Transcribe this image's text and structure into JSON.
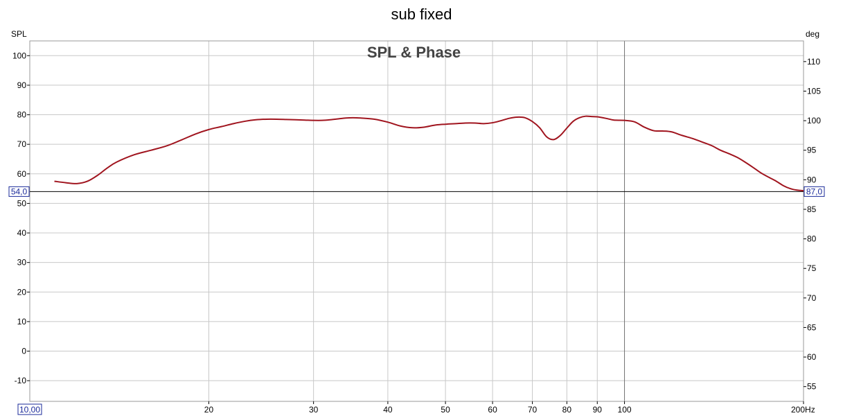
{
  "chart_data": {
    "type": "line",
    "title": "sub fixed",
    "subtitle": "SPL & Phase",
    "xlabel": "Hz",
    "ylabel": "SPL",
    "y2label": "deg",
    "x_scale": "log",
    "xlim": [
      10,
      200
    ],
    "ylim": [
      -17,
      105
    ],
    "y2lim": [
      52.5,
      113.5
    ],
    "x_ticks": [
      {
        "value": 20,
        "label": "20"
      },
      {
        "value": 30,
        "label": "30"
      },
      {
        "value": 40,
        "label": "40"
      },
      {
        "value": 50,
        "label": "50"
      },
      {
        "value": 60,
        "label": "60"
      },
      {
        "value": 70,
        "label": "70"
      },
      {
        "value": 80,
        "label": "80"
      },
      {
        "value": 90,
        "label": "90"
      },
      {
        "value": 100,
        "label": "100"
      },
      {
        "value": 200,
        "label": "200Hz"
      }
    ],
    "x_minor_grid": [
      70,
      80,
      90
    ],
    "x_start_label": "10,00",
    "y_ticks": [
      {
        "value": 100,
        "label": "100"
      },
      {
        "value": 90,
        "label": "90"
      },
      {
        "value": 80,
        "label": "80"
      },
      {
        "value": 70,
        "label": "70"
      },
      {
        "value": 60,
        "label": "60"
      },
      {
        "value": 50,
        "label": "50"
      },
      {
        "value": 40,
        "label": "40"
      },
      {
        "value": 30,
        "label": "30"
      },
      {
        "value": 20,
        "label": "20"
      },
      {
        "value": 10,
        "label": "10"
      },
      {
        "value": 0,
        "label": "0"
      },
      {
        "value": -10,
        "label": "-10"
      }
    ],
    "y2_ticks": [
      {
        "value": 110,
        "label": "110"
      },
      {
        "value": 105,
        "label": "105"
      },
      {
        "value": 100,
        "label": "100"
      },
      {
        "value": 95,
        "label": "95"
      },
      {
        "value": 90,
        "label": "90"
      },
      {
        "value": 85,
        "label": "85"
      },
      {
        "value": 80,
        "label": "80"
      },
      {
        "value": 75,
        "label": "75"
      },
      {
        "value": 70,
        "label": "70"
      },
      {
        "value": 65,
        "label": "65"
      },
      {
        "value": 60,
        "label": "60"
      },
      {
        "value": 55,
        "label": "55"
      }
    ],
    "reference_line": {
      "y": 54.0,
      "left_label": "54,0",
      "right_label": "87,0"
    },
    "cursor_x": 100,
    "grid": true,
    "series": [
      {
        "color": "#a0141e",
        "x": [
          11.0,
          11.5,
          12.0,
          12.5,
          13.0,
          13.5,
          14.0,
          15.0,
          16.0,
          17.0,
          18.0,
          19.0,
          20.0,
          21.0,
          22.0,
          23.0,
          24.0,
          25.0,
          26.0,
          27.0,
          28.0,
          29.0,
          30.0,
          31.0,
          32.0,
          33.0,
          34.0,
          35.0,
          36.0,
          38.0,
          40.0,
          42.0,
          44.0,
          46.0,
          48.0,
          50.0,
          52.0,
          54.0,
          56.0,
          58.0,
          60.0,
          62.0,
          64.0,
          66.0,
          68.0,
          70.0,
          72.0,
          74.0,
          76.0,
          78.0,
          80.0,
          82.0,
          84.0,
          86.0,
          88.0,
          90.0,
          93.0,
          96.0,
          100.0,
          104.0,
          108.0,
          112.0,
          116.0,
          120.0,
          125.0,
          130.0,
          135.0,
          140.0,
          145.0,
          150.0,
          155.0,
          160.0,
          165.0,
          170.0,
          175.0,
          180.0,
          185.0,
          190.0,
          195.0,
          200.0
        ],
        "values": [
          57.5,
          57.0,
          56.7,
          57.5,
          59.5,
          62.0,
          64.0,
          66.5,
          68.0,
          69.5,
          71.5,
          73.5,
          75.0,
          76.0,
          77.0,
          77.8,
          78.3,
          78.5,
          78.5,
          78.4,
          78.3,
          78.2,
          78.1,
          78.1,
          78.3,
          78.6,
          78.9,
          79.0,
          78.9,
          78.5,
          77.5,
          76.2,
          75.6,
          75.8,
          76.5,
          76.8,
          77.0,
          77.2,
          77.2,
          77.0,
          77.3,
          78.0,
          78.8,
          79.2,
          79.0,
          77.7,
          75.6,
          72.5,
          71.6,
          73.0,
          75.5,
          77.8,
          79.0,
          79.5,
          79.4,
          79.3,
          78.8,
          78.2,
          78.1,
          77.6,
          75.8,
          74.6,
          74.5,
          74.2,
          73.0,
          72.0,
          70.8,
          69.6,
          68.0,
          66.8,
          65.5,
          63.8,
          62.0,
          60.2,
          58.8,
          57.5,
          56.0,
          55.0,
          54.5,
          54.3
        ]
      }
    ]
  }
}
